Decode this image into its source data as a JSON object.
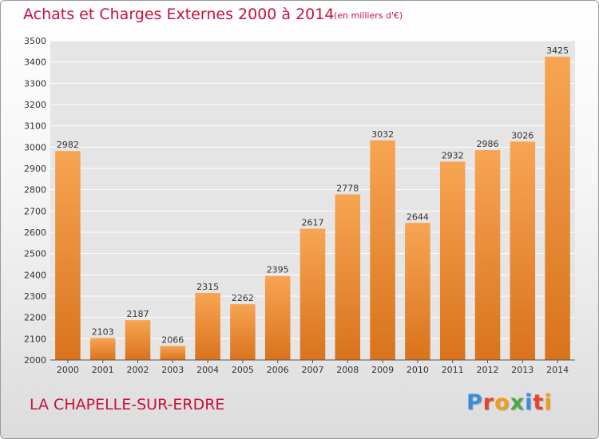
{
  "header": {
    "title": "Achats et Charges Externes 2000 à 2014",
    "unit": "(en milliers d'€)"
  },
  "footer": {
    "location": "LA CHAPELLE-SUR-ERDRE",
    "brand": "Proxiti"
  },
  "colors": {
    "bar_top": "#f7a553",
    "bar_bottom": "#d9731c",
    "accent": "#c8103e",
    "brand_letters": [
      "#3a8dde",
      "#e8442b",
      "#f29b1f",
      "#4aa84a",
      "#3a8dde",
      "#e8442b",
      "#f29b1f"
    ]
  },
  "chart_data": {
    "type": "bar",
    "title": "Achats et Charges Externes 2000 à 2014",
    "subtitle": "(en milliers d'€)",
    "xlabel": "",
    "ylabel": "",
    "categories": [
      "2000",
      "2001",
      "2002",
      "2003",
      "2004",
      "2005",
      "2006",
      "2007",
      "2008",
      "2009",
      "2010",
      "2011",
      "2012",
      "2013",
      "2014"
    ],
    "values": [
      2982,
      2103,
      2187,
      2066,
      2315,
      2262,
      2395,
      2617,
      2778,
      3032,
      2644,
      2932,
      2986,
      3026,
      3425
    ],
    "ylim": [
      2000,
      3500
    ],
    "yticks": [
      2000,
      2100,
      2200,
      2300,
      2400,
      2500,
      2600,
      2700,
      2800,
      2900,
      3000,
      3100,
      3200,
      3300,
      3400,
      3500
    ],
    "grid": true,
    "legend": "none",
    "data_labels": true
  }
}
